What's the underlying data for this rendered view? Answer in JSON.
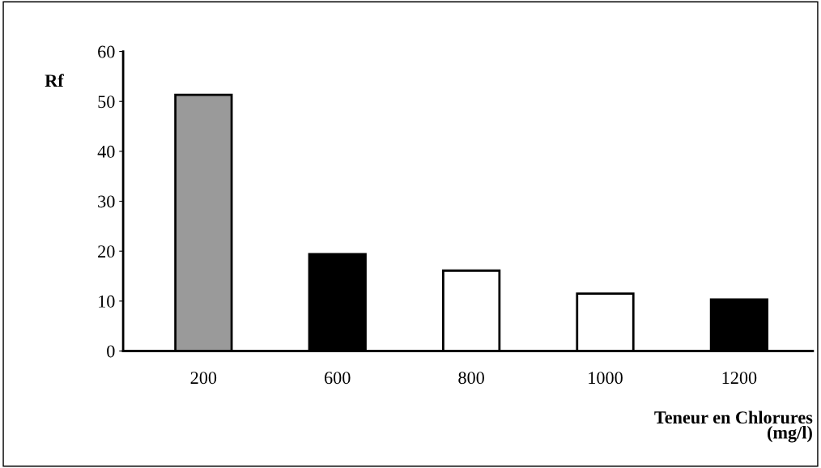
{
  "chart_data": {
    "type": "bar",
    "xlabel": "Teneur en Chlorures\n(mg/l)",
    "ylabel": "Rf",
    "categories": [
      "200",
      "600",
      "800",
      "1000",
      "1200"
    ],
    "values": [
      51.3,
      19.4,
      16.1,
      11.5,
      10.3
    ],
    "colors": [
      "#9a9a9a",
      "#000000",
      "#ffffff",
      "#ffffff",
      "#000000"
    ],
    "ylim": [
      0,
      60
    ],
    "yticks": [
      0,
      10,
      20,
      30,
      40,
      50,
      60
    ],
    "grid": false,
    "legend": false
  }
}
